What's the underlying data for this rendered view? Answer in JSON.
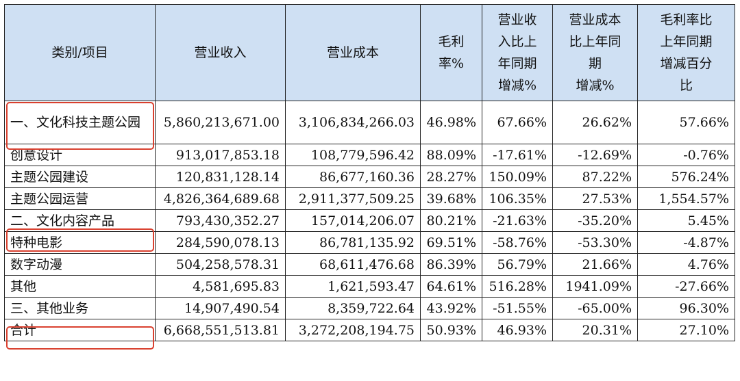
{
  "header": {
    "category": "类别/项目",
    "revenue": "营业收入",
    "cost": "营业成本",
    "margin_lines": [
      "毛利",
      "率%"
    ],
    "revenue_change_lines": [
      "营业收",
      "入比上",
      "年同期",
      "增减%"
    ],
    "cost_change_lines": [
      "营业成本",
      "比上年同",
      "期",
      "增减%"
    ],
    "margin_change_lines": [
      "毛利率比",
      "上年同期",
      "增减百分",
      "比"
    ]
  },
  "rows": [
    {
      "label": "一、文化科技主题公园",
      "revenue": "5,860,213,671.00",
      "cost": "3,106,834,266.03",
      "margin": "46.98%",
      "revenue_change": "67.66%",
      "cost_change": "26.62%",
      "margin_change": "57.66%"
    },
    {
      "label": "创意设计",
      "revenue": "913,017,853.18",
      "cost": "108,779,596.42",
      "margin": "88.09%",
      "revenue_change": "-17.61%",
      "cost_change": "-12.69%",
      "margin_change": "-0.76%"
    },
    {
      "label": "主题公园建设",
      "revenue": "120,831,128.14",
      "cost": "86,677,160.36",
      "margin": "28.27%",
      "revenue_change": "150.09%",
      "cost_change": "87.22%",
      "margin_change": "576.24%"
    },
    {
      "label": "主题公园运营",
      "revenue": "4,826,364,689.68",
      "cost": "2,911,377,509.25",
      "margin": "39.68%",
      "revenue_change": "106.35%",
      "cost_change": "27.53%",
      "margin_change": "1,554.57%"
    },
    {
      "label": "二、文化内容产品",
      "revenue": "793,430,352.27",
      "cost": "157,014,206.07",
      "margin": "80.21%",
      "revenue_change": "-21.63%",
      "cost_change": "-35.20%",
      "margin_change": "5.45%"
    },
    {
      "label": "特种电影",
      "revenue": "284,590,078.13",
      "cost": "86,781,135.92",
      "margin": "69.51%",
      "revenue_change": "-58.76%",
      "cost_change": "-53.30%",
      "margin_change": "-4.87%"
    },
    {
      "label": "数字动漫",
      "revenue": "504,258,578.31",
      "cost": "68,611,476.68",
      "margin": "86.39%",
      "revenue_change": "56.79%",
      "cost_change": "21.66%",
      "margin_change": "4.76%"
    },
    {
      "label": "其他",
      "revenue": "4,581,695.83",
      "cost": "1,621,593.47",
      "margin": "64.61%",
      "revenue_change": "516.28%",
      "cost_change": "1941.09%",
      "margin_change": "-27.66%"
    },
    {
      "label": "三、其他业务",
      "revenue": "14,907,490.54",
      "cost": "8,359,722.64",
      "margin": "43.92%",
      "revenue_change": "-51.55%",
      "cost_change": "-65.00%",
      "margin_change": "96.30%"
    },
    {
      "label": "合计",
      "revenue": "6,668,551,513.81",
      "cost": "3,272,208,194.75",
      "margin": "50.93%",
      "revenue_change": "46.93%",
      "cost_change": "20.31%",
      "margin_change": "27.10%"
    }
  ],
  "colors": {
    "header_bg": "#cfe0f3",
    "highlight": "#d9402f",
    "border": "#222222"
  }
}
